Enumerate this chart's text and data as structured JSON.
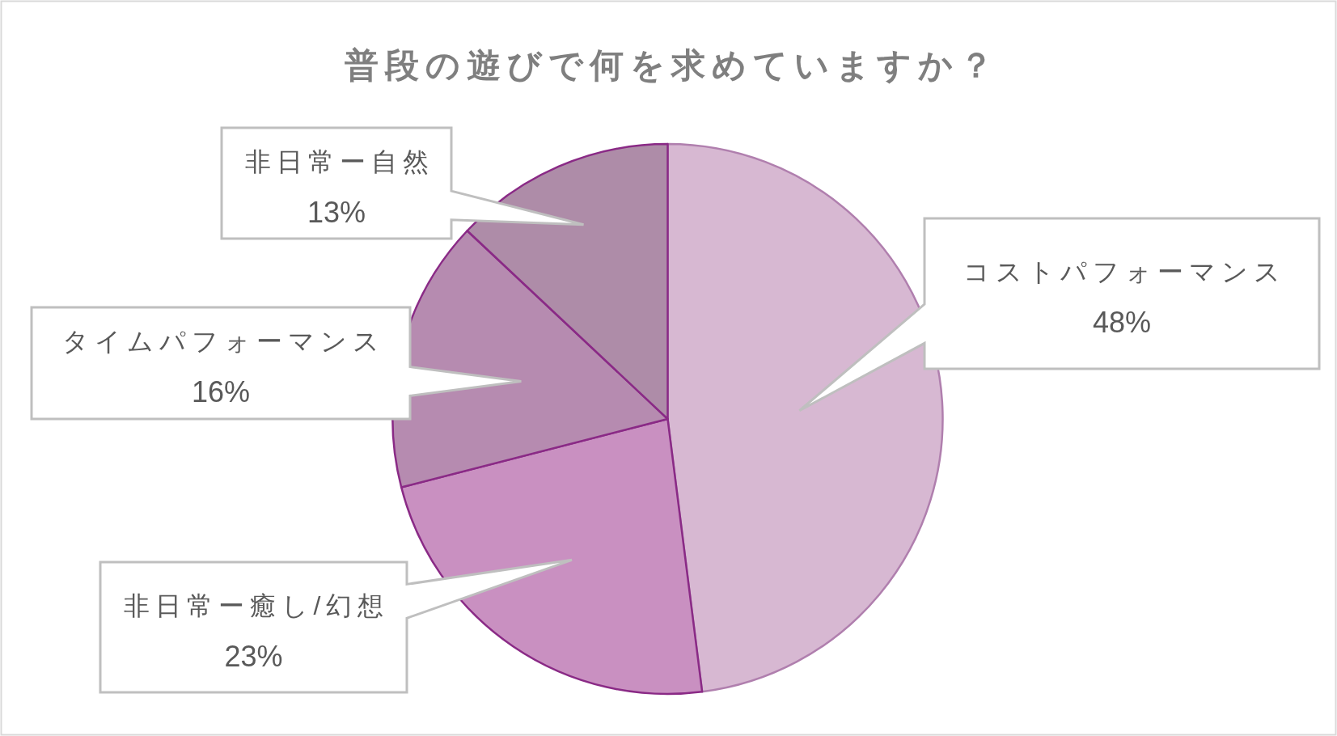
{
  "chart_data": {
    "type": "pie",
    "title": "普段の遊びで何を求めていますか？",
    "categories": [
      "コストパフォーマンス",
      "非日常ー癒し/幻想",
      "タイムパフォーマンス",
      "非日常ー自然"
    ],
    "values": [
      48,
      23,
      16,
      13
    ],
    "colors": [
      "#d7b8d2",
      "#c990c1",
      "#b68bb0",
      "#ae8ca8"
    ],
    "value_labels": [
      "48%",
      "23%",
      "16%",
      "13%"
    ]
  }
}
